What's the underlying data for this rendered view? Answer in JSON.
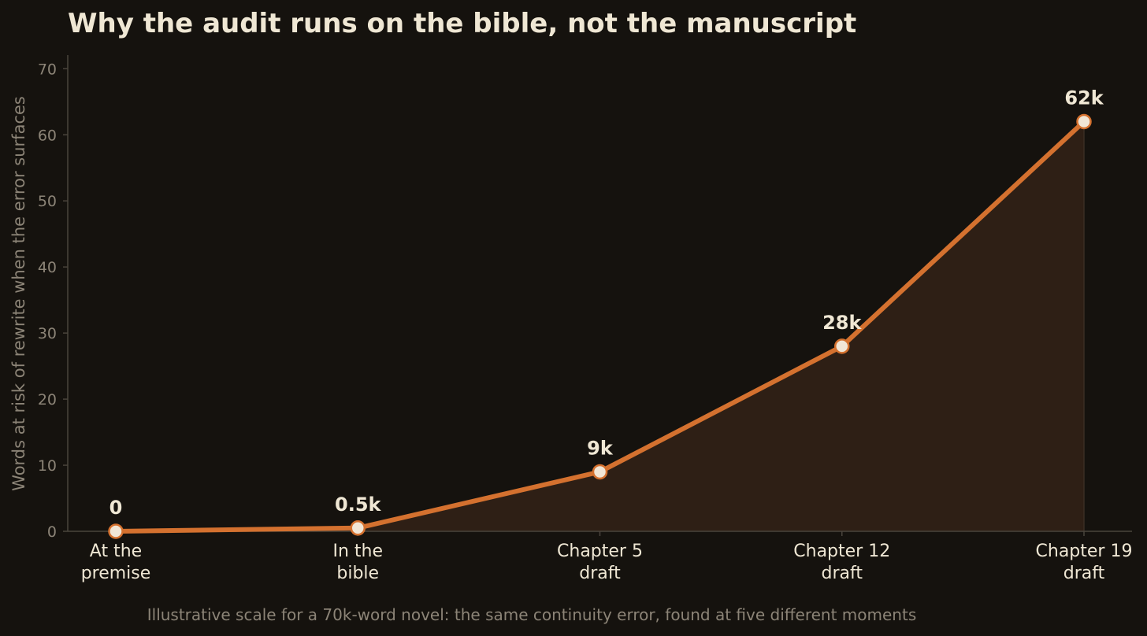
{
  "chart_data": {
    "type": "area",
    "title": "Why the audit runs on the bible, not the manuscript",
    "ylabel": "Words at risk of rewrite when the error surfaces",
    "xlabel": "",
    "caption": "Illustrative scale for a 70k-word novel: the same continuity error, found at five different moments",
    "categories": [
      [
        "At the",
        "premise"
      ],
      [
        "In the",
        "bible"
      ],
      [
        "Chapter 5",
        "draft"
      ],
      [
        "Chapter 12",
        "draft"
      ],
      [
        "Chapter 19",
        "draft"
      ]
    ],
    "values": [
      0,
      0.5,
      9,
      28,
      62
    ],
    "data_labels": [
      "0",
      "0.5k",
      "9k",
      "28k",
      "62k"
    ],
    "ylim": [
      0,
      72
    ],
    "yticks": [
      0,
      10,
      20,
      30,
      40,
      50,
      60,
      70
    ],
    "grid": false,
    "legend": "none",
    "colors": {
      "background": "#15120e",
      "line": "#d4712f",
      "fill": "#2e1f15",
      "marker_fill": "#f1e6d6",
      "marker_stroke": "#d4712f",
      "axis": "#4a443c",
      "text": "#efe7d4",
      "muted_text": "#8c8477"
    }
  }
}
